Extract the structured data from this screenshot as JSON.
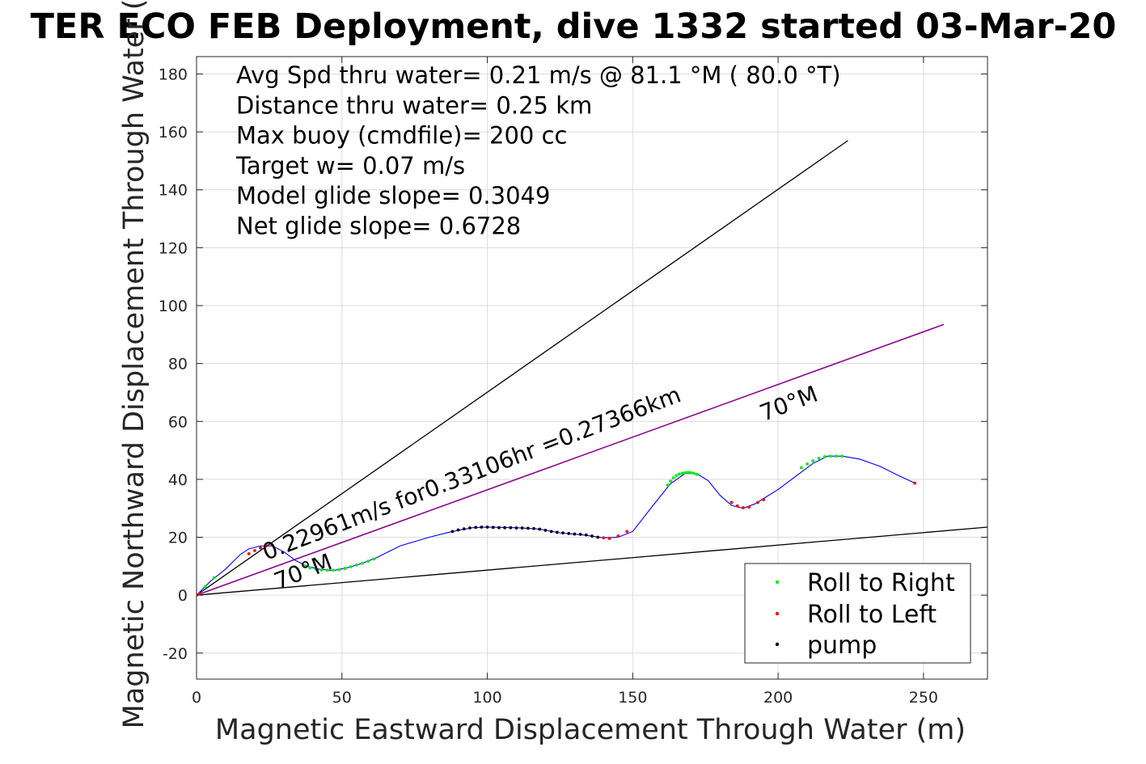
{
  "chart_data": {
    "type": "scatter",
    "title": "TER ECO FEB Deployment, dive 1332 started 03-Mar-20",
    "xlabel": "Magnetic Eastward Displacement Through Water (m)",
    "ylabel": "Magnetic Northward Displacement Through Water (",
    "xlim": [
      0,
      272
    ],
    "ylim": [
      -29,
      186
    ],
    "xticks": [
      0,
      50,
      100,
      150,
      200,
      250
    ],
    "yticks": [
      -20,
      0,
      20,
      40,
      60,
      80,
      100,
      120,
      140,
      160,
      180
    ],
    "grid": true,
    "legend_position": "bottom-right",
    "info_lines": [
      "Avg Spd thru water=  0.21 m/s @  81.1 °M ( 80.0 °T)",
      "Distance thru water=  0.25 km",
      "Max buoy (cmdfile)= 200 cc",
      "Target w= 0.07 m/s",
      "Model glide slope= 0.3049",
      "Net glide slope= 0.6728"
    ],
    "annotations": [
      {
        "text": "0.22961m/s for0.33106hr =0.27366km",
        "x": 24,
        "y": 12,
        "rotation_deg": -21
      },
      {
        "text": "70°M",
        "x": 195,
        "y": 60,
        "rotation_deg": -21
      },
      {
        "text": "70°M",
        "x": 28,
        "y": 2,
        "rotation_deg": -21
      }
    ],
    "lines": [
      {
        "name": "upper-glide-line",
        "color": "#000000",
        "x": [
          0,
          224
        ],
        "y": [
          0,
          157
        ]
      },
      {
        "name": "lower-glide-line",
        "color": "#000000",
        "x": [
          0,
          272
        ],
        "y": [
          0,
          23.5
        ]
      },
      {
        "name": "heading-line",
        "color": "#8a0a8a",
        "x": [
          0,
          257
        ],
        "y": [
          0,
          93.5
        ]
      }
    ],
    "track": {
      "color": "#0000ff",
      "x": [
        0,
        2,
        5,
        10,
        15,
        18,
        22,
        26,
        30,
        34,
        38,
        42,
        47,
        52,
        57,
        62,
        70,
        80,
        88,
        95,
        100,
        110,
        118,
        125,
        133,
        140,
        145,
        150,
        157,
        163,
        168,
        172,
        176,
        180,
        184,
        188,
        192,
        196,
        200,
        206,
        212,
        217,
        222,
        228,
        235,
        241,
        247
      ],
      "y": [
        0,
        2,
        5,
        9,
        14,
        16,
        17,
        17,
        15,
        12,
        10,
        9,
        8.5,
        9.5,
        11,
        13,
        17,
        20,
        22,
        23.3,
        23.5,
        23.3,
        22.8,
        21.5,
        20.8,
        19.8,
        20,
        22,
        31,
        38.5,
        42,
        42,
        39.5,
        34.5,
        31,
        30,
        31.5,
        34,
        36.5,
        41,
        45.5,
        48,
        48,
        47,
        44.5,
        41.5,
        38.7
      ]
    },
    "series": [
      {
        "name": "Roll to Right",
        "color": "#00ee00",
        "x": [
          3,
          6,
          37,
          39,
          41,
          43,
          45,
          47,
          49,
          51,
          53,
          55,
          57,
          59,
          61,
          162,
          163,
          164,
          165,
          166,
          167,
          168,
          169,
          170,
          171,
          172,
          208,
          210,
          212,
          214,
          216,
          218,
          220,
          222
        ],
        "y": [
          3,
          6,
          10,
          9.4,
          9,
          8.7,
          8.6,
          8.6,
          8.8,
          9.2,
          9.8,
          10.4,
          11,
          11.7,
          12.5,
          38,
          39.4,
          40.5,
          41.3,
          41.8,
          42.1,
          42.3,
          42.4,
          42.3,
          42.1,
          41.7,
          44,
          45.3,
          46.4,
          47.3,
          47.8,
          48,
          48,
          48
        ]
      },
      {
        "name": "Roll to Left",
        "color": "#ff0000",
        "x": [
          0,
          1,
          18,
          20,
          22,
          24,
          26,
          140,
          142,
          145,
          148,
          184,
          186,
          188,
          190,
          193,
          195,
          247
        ],
        "y": [
          0,
          0.5,
          14.3,
          15.4,
          16.3,
          17,
          17.3,
          19.8,
          19.6,
          20.4,
          22,
          32,
          30.8,
          30.2,
          30.4,
          32,
          33,
          38.7
        ]
      },
      {
        "name": "pump",
        "color": "#000000",
        "x": [
          88,
          90,
          92,
          94,
          96,
          98,
          100,
          102,
          104,
          106,
          108,
          110,
          112,
          114,
          116,
          118,
          120,
          122,
          124,
          126,
          128,
          130,
          132,
          134,
          136,
          138
        ],
        "y": [
          22,
          22.5,
          22.9,
          23.2,
          23.4,
          23.5,
          23.5,
          23.4,
          23.3,
          23.3,
          23.3,
          23.2,
          23.2,
          23.1,
          23,
          22.8,
          22.4,
          22,
          21.7,
          21.5,
          21.3,
          21.1,
          21,
          20.8,
          20.4,
          20
        ]
      }
    ]
  }
}
